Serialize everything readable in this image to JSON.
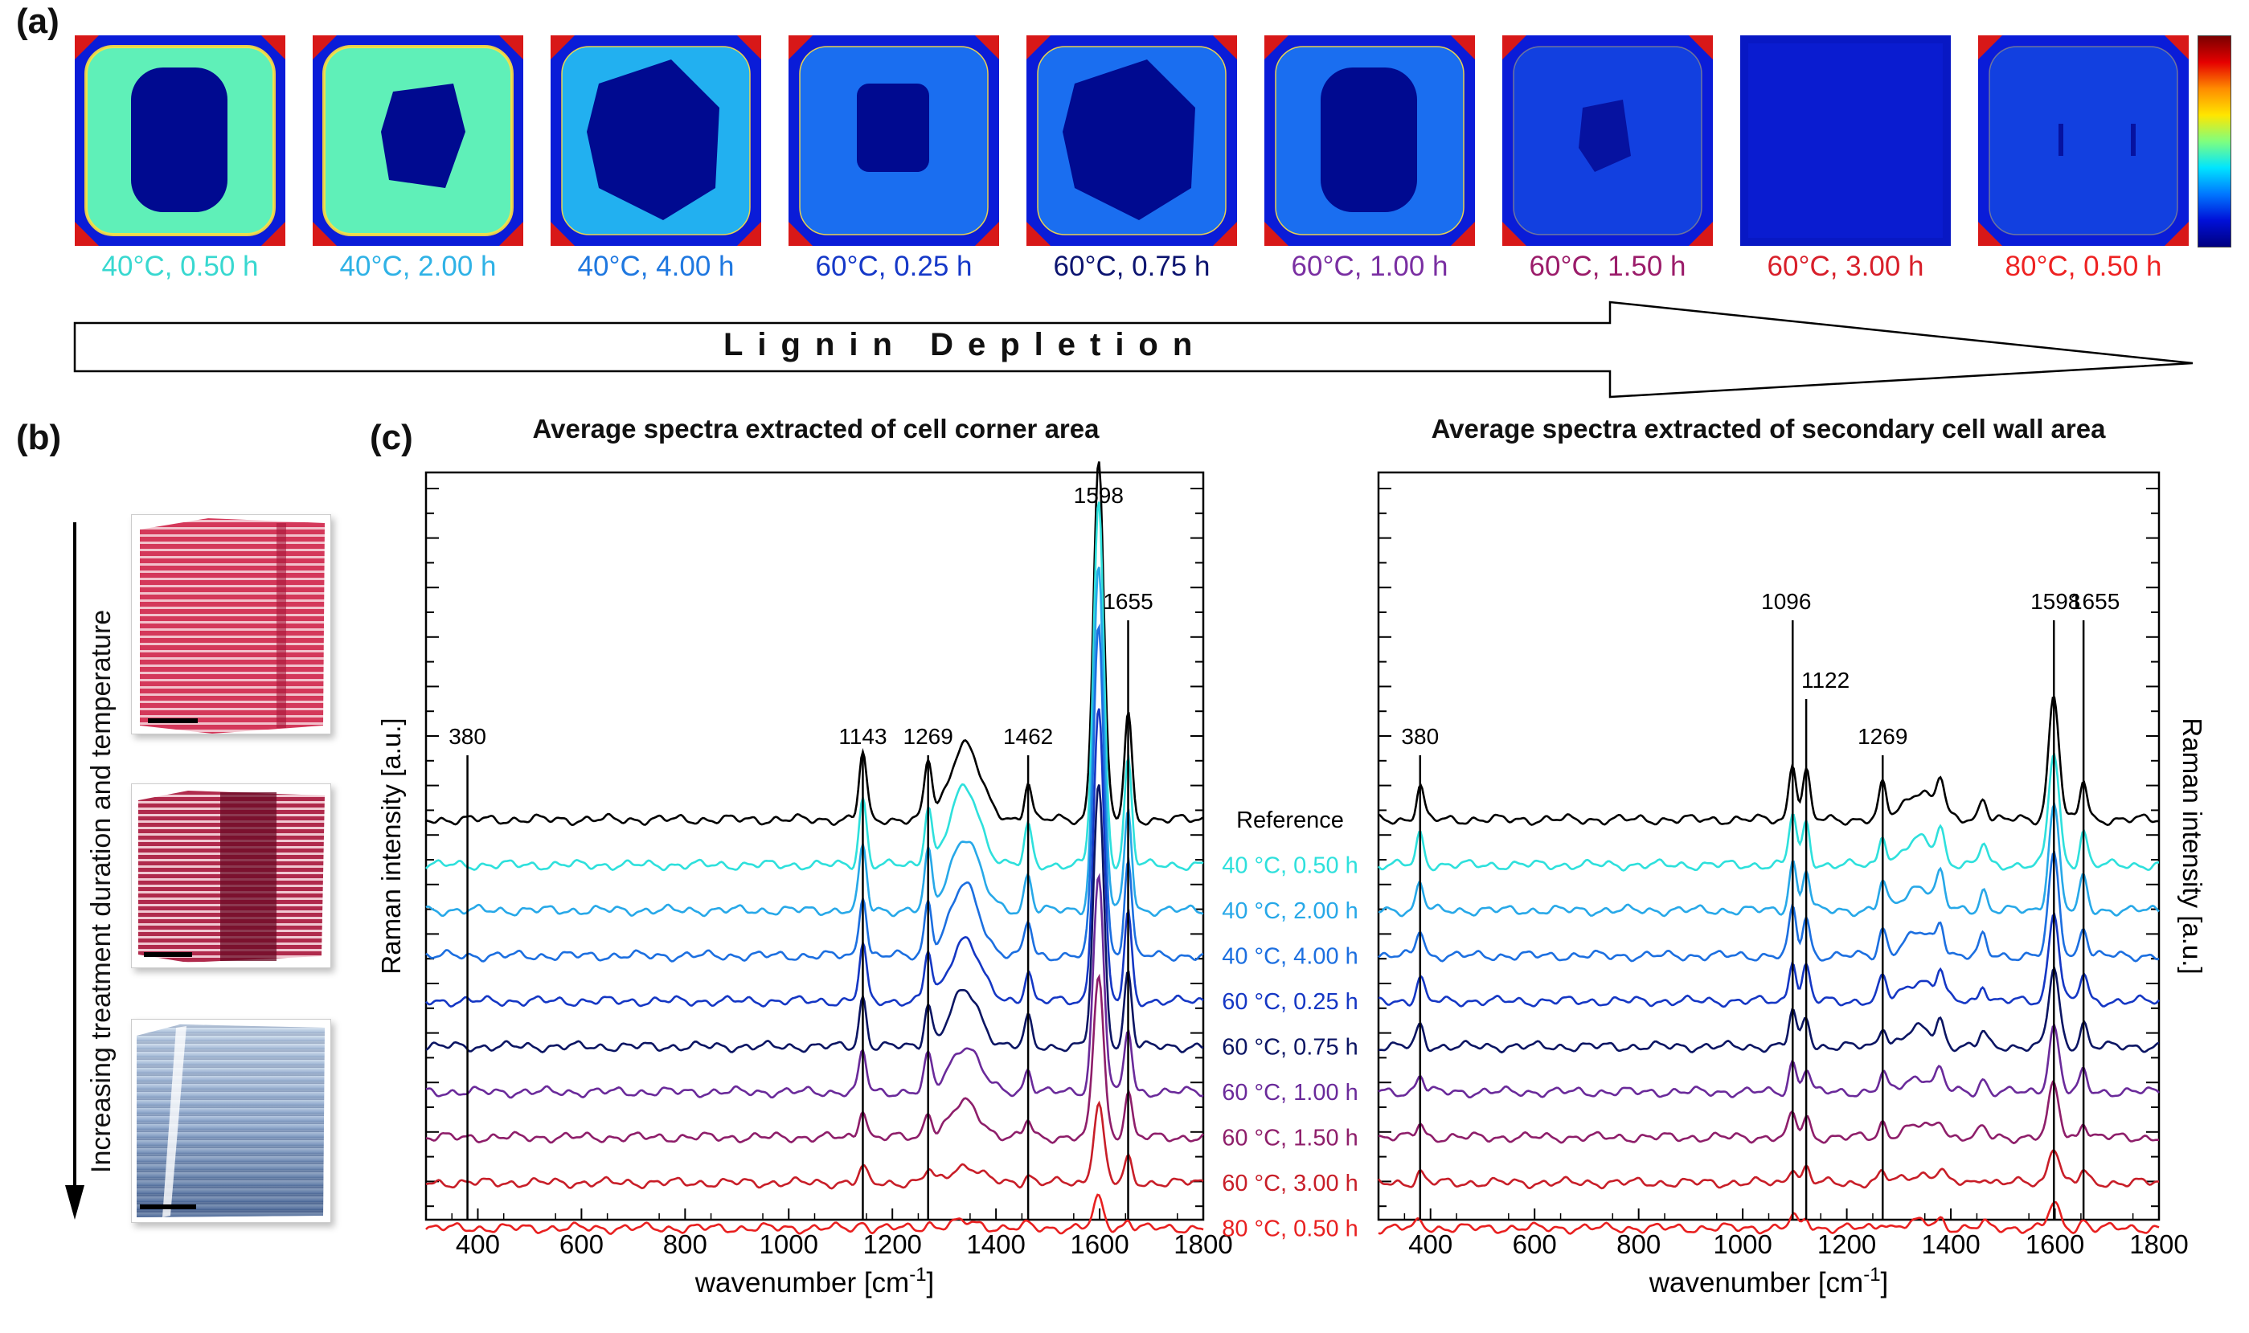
{
  "panels": {
    "a": "(a)",
    "b": "(b)",
    "c": "(c)"
  },
  "tiles": [
    {
      "caption": "40°C, 0.50 h",
      "color": "#38d8d0",
      "level": 0.62,
      "lumen": "oval"
    },
    {
      "caption": "40°C, 2.00 h",
      "color": "#2fb2e6",
      "level": 0.58,
      "lumen": "star"
    },
    {
      "caption": "40°C, 4.00 h",
      "color": "#1f78e0",
      "level": 0.42,
      "lumen": "big"
    },
    {
      "caption": "60°C, 0.25 h",
      "color": "#1538c8",
      "level": 0.38,
      "lumen": "small"
    },
    {
      "caption": "60°C, 0.75 h",
      "color": "#0c1470",
      "level": 0.36,
      "lumen": "big"
    },
    {
      "caption": "60°C, 1.00 h",
      "color": "#7a2fa2",
      "level": 0.4,
      "lumen": "oval"
    },
    {
      "caption": "60°C, 1.50 h",
      "color": "#9b1c6a",
      "level": 0.27,
      "lumen": "tiny"
    },
    {
      "caption": "60°C, 3.00 h",
      "color": "#d81f2a",
      "level": 0.08,
      "lumen": "none"
    },
    {
      "caption": "80°C, 0.50 h",
      "color": "#ee2222",
      "level": 0.2,
      "lumen": "slit"
    }
  ],
  "arrow_label": "Lignin Depletion",
  "side_label": "Increasing treatment duration and temperature",
  "chart_data": [
    {
      "type": "line",
      "title": "Average spectra extracted of cell corner area",
      "xlabel": "wavenumber [cm",
      "xlabel_sup": "-1",
      "xlabel_end": "]",
      "ylabel": "Raman intensity [a.u.]",
      "xlim": [
        300,
        1800
      ],
      "xticks": [
        400,
        600,
        800,
        1000,
        1200,
        1400,
        1600,
        1800
      ],
      "peak_lines": [
        {
          "x": 380,
          "label": "380"
        },
        {
          "x": 1143,
          "label": "1143"
        },
        {
          "x": 1269,
          "label": "1269"
        },
        {
          "x": 1462,
          "label": "1462"
        },
        {
          "x": 1598,
          "label": "1598"
        },
        {
          "x": 1655,
          "label": "1655"
        }
      ],
      "series_names": [
        {
          "name": "Reference",
          "color": "#000000"
        },
        {
          "name": "40 °C, 0.50 h",
          "color": "#2ee0dc"
        },
        {
          "name": "40 °C, 2.00 h",
          "color": "#27a8e8"
        },
        {
          "name": "40 °C, 4.00 h",
          "color": "#1c6fe0"
        },
        {
          "name": "60 °C, 0.25 h",
          "color": "#1537c4"
        },
        {
          "name": "60 °C, 0.75 h",
          "color": "#0b1563"
        },
        {
          "name": "60 °C, 1.00 h",
          "color": "#6a2a9a"
        },
        {
          "name": "60 °C, 1.50 h",
          "color": "#8e1e6a"
        },
        {
          "name": "60 °C, 3.00 h",
          "color": "#c81e28"
        },
        {
          "name": "80 °C, 0.50 h",
          "color": "#e82020"
        }
      ],
      "series_peak_scale": [
        1.0,
        1.0,
        0.95,
        0.92,
        0.82,
        0.72,
        0.6,
        0.45,
        0.22,
        0.08
      ],
      "series_peaks": [
        [
          380,
          0.0
        ],
        [
          1143,
          0.14
        ],
        [
          1269,
          0.12
        ],
        [
          1340,
          0.16
        ],
        [
          1462,
          0.08
        ],
        [
          1598,
          0.75
        ],
        [
          1655,
          0.22
        ]
      ]
    },
    {
      "type": "line",
      "title": "Average spectra extracted of secondary cell wall area",
      "xlabel": "wavenumber [cm",
      "xlabel_sup": "-1",
      "xlabel_end": "]",
      "ylabel": "Raman intensity [a.u.]",
      "xlim": [
        300,
        1800
      ],
      "xticks": [
        400,
        600,
        800,
        1000,
        1200,
        1400,
        1600,
        1800
      ],
      "peak_lines": [
        {
          "x": 380,
          "label": "380"
        },
        {
          "x": 1096,
          "label": "1096"
        },
        {
          "x": 1122,
          "label": "1122"
        },
        {
          "x": 1269,
          "label": "1269"
        },
        {
          "x": 1598,
          "label": "1598"
        },
        {
          "x": 1655,
          "label": "1655"
        }
      ],
      "series_peak_scale": [
        1.0,
        0.9,
        0.85,
        0.8,
        0.72,
        0.62,
        0.52,
        0.42,
        0.3,
        0.2
      ],
      "series_peaks": [
        [
          380,
          0.07
        ],
        [
          1096,
          0.12
        ],
        [
          1122,
          0.1
        ],
        [
          1269,
          0.07
        ],
        [
          1340,
          0.06
        ],
        [
          1380,
          0.07
        ],
        [
          1462,
          0.05
        ],
        [
          1598,
          0.26
        ],
        [
          1655,
          0.08
        ]
      ]
    }
  ]
}
